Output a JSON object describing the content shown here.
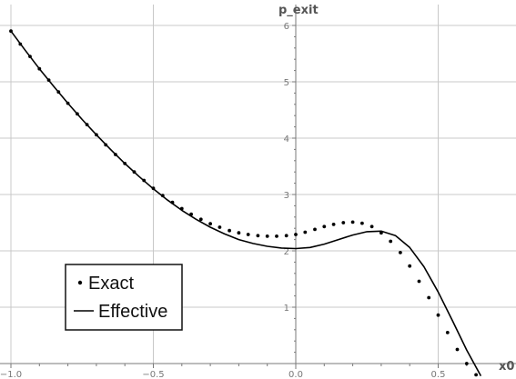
{
  "chart_data": {
    "type": "line",
    "xlabel": "x0",
    "ylabel": "p_exit",
    "xlim": [
      -1.0,
      0.68
    ],
    "ylim": [
      0,
      6
    ],
    "x_ticks": [
      -1.0,
      -0.5,
      0.0,
      0.5
    ],
    "x_tick_labels": [
      "−1.0",
      "−0.5",
      "0.0",
      "0.5"
    ],
    "y_ticks": [
      1,
      2,
      3,
      4,
      5,
      6
    ],
    "y_tick_labels": [
      "1",
      "2",
      "3",
      "4",
      "5",
      "6"
    ],
    "grid": true,
    "legend_position": "bottom-left",
    "series": [
      {
        "name": "Exact",
        "style": "points",
        "color": "#000000",
        "x": [
          -1.0,
          -0.967,
          -0.933,
          -0.9,
          -0.867,
          -0.833,
          -0.8,
          -0.767,
          -0.733,
          -0.7,
          -0.667,
          -0.633,
          -0.6,
          -0.567,
          -0.533,
          -0.5,
          -0.467,
          -0.433,
          -0.4,
          -0.367,
          -0.333,
          -0.3,
          -0.267,
          -0.233,
          -0.2,
          -0.167,
          -0.133,
          -0.1,
          -0.067,
          -0.033,
          0.0,
          0.033,
          0.067,
          0.1,
          0.133,
          0.167,
          0.2,
          0.233,
          0.267,
          0.3,
          0.333,
          0.367,
          0.4,
          0.433,
          0.467,
          0.5,
          0.533,
          0.567,
          0.6,
          0.633,
          0.667
        ],
        "y": [
          5.9,
          5.67,
          5.45,
          5.23,
          5.03,
          4.82,
          4.62,
          4.43,
          4.24,
          4.06,
          3.88,
          3.71,
          3.55,
          3.4,
          3.25,
          3.11,
          2.98,
          2.86,
          2.75,
          2.65,
          2.56,
          2.48,
          2.42,
          2.36,
          2.32,
          2.29,
          2.27,
          2.26,
          2.26,
          2.27,
          2.29,
          2.33,
          2.38,
          2.43,
          2.47,
          2.5,
          2.51,
          2.49,
          2.43,
          2.32,
          2.17,
          1.97,
          1.73,
          1.46,
          1.17,
          0.86,
          0.55,
          0.25,
          0.0,
          -0.2,
          -0.35
        ]
      },
      {
        "name": "Effective",
        "style": "line",
        "color": "#000000",
        "x": [
          -1.0,
          -0.95,
          -0.9,
          -0.85,
          -0.8,
          -0.75,
          -0.7,
          -0.65,
          -0.6,
          -0.55,
          -0.5,
          -0.45,
          -0.4,
          -0.35,
          -0.3,
          -0.25,
          -0.2,
          -0.15,
          -0.1,
          -0.05,
          0.0,
          0.05,
          0.1,
          0.15,
          0.2,
          0.25,
          0.3,
          0.35,
          0.4,
          0.45,
          0.5,
          0.55,
          0.6,
          0.65
        ],
        "y": [
          5.9,
          5.56,
          5.23,
          4.92,
          4.62,
          4.33,
          4.06,
          3.8,
          3.55,
          3.32,
          3.1,
          2.9,
          2.72,
          2.56,
          2.42,
          2.3,
          2.2,
          2.13,
          2.08,
          2.05,
          2.04,
          2.06,
          2.12,
          2.2,
          2.28,
          2.34,
          2.35,
          2.27,
          2.06,
          1.72,
          1.27,
          0.76,
          0.24,
          -0.22
        ]
      }
    ]
  }
}
